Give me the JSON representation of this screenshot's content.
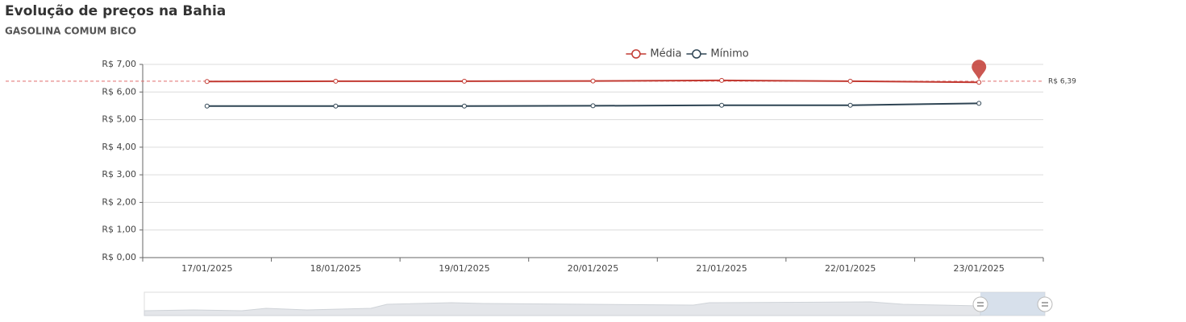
{
  "title": "Evolução de preços na Bahia",
  "subtitle": "GASOLINA COMUM BICO",
  "chart_data": {
    "type": "line",
    "categories": [
      "17/01/2025",
      "18/01/2025",
      "19/01/2025",
      "20/01/2025",
      "21/01/2025",
      "22/01/2025",
      "23/01/2025"
    ],
    "series": [
      {
        "name": "Média",
        "color": "#c23a32",
        "values": [
          6.38,
          6.39,
          6.39,
          6.4,
          6.42,
          6.39,
          6.35
        ]
      },
      {
        "name": "Mínimo",
        "color": "#2f4554",
        "values": [
          5.49,
          5.49,
          5.49,
          5.5,
          5.52,
          5.52,
          5.59
        ]
      }
    ],
    "ylim": [
      0,
      7
    ],
    "yticks": [
      {
        "value": 0,
        "label": "R$ 0,00"
      },
      {
        "value": 1,
        "label": "R$ 1,00"
      },
      {
        "value": 2,
        "label": "R$ 2,00"
      },
      {
        "value": 3,
        "label": "R$ 3,00"
      },
      {
        "value": 4,
        "label": "R$ 4,00"
      },
      {
        "value": 5,
        "label": "R$ 5,00"
      },
      {
        "value": 6,
        "label": "R$ 6,00"
      },
      {
        "value": 7,
        "label": "R$ 7,00"
      }
    ],
    "grid": true,
    "legend": "top",
    "mark_line": {
      "value": 6.39,
      "label": "R$ 6,39",
      "color": "#e06c6c"
    }
  }
}
